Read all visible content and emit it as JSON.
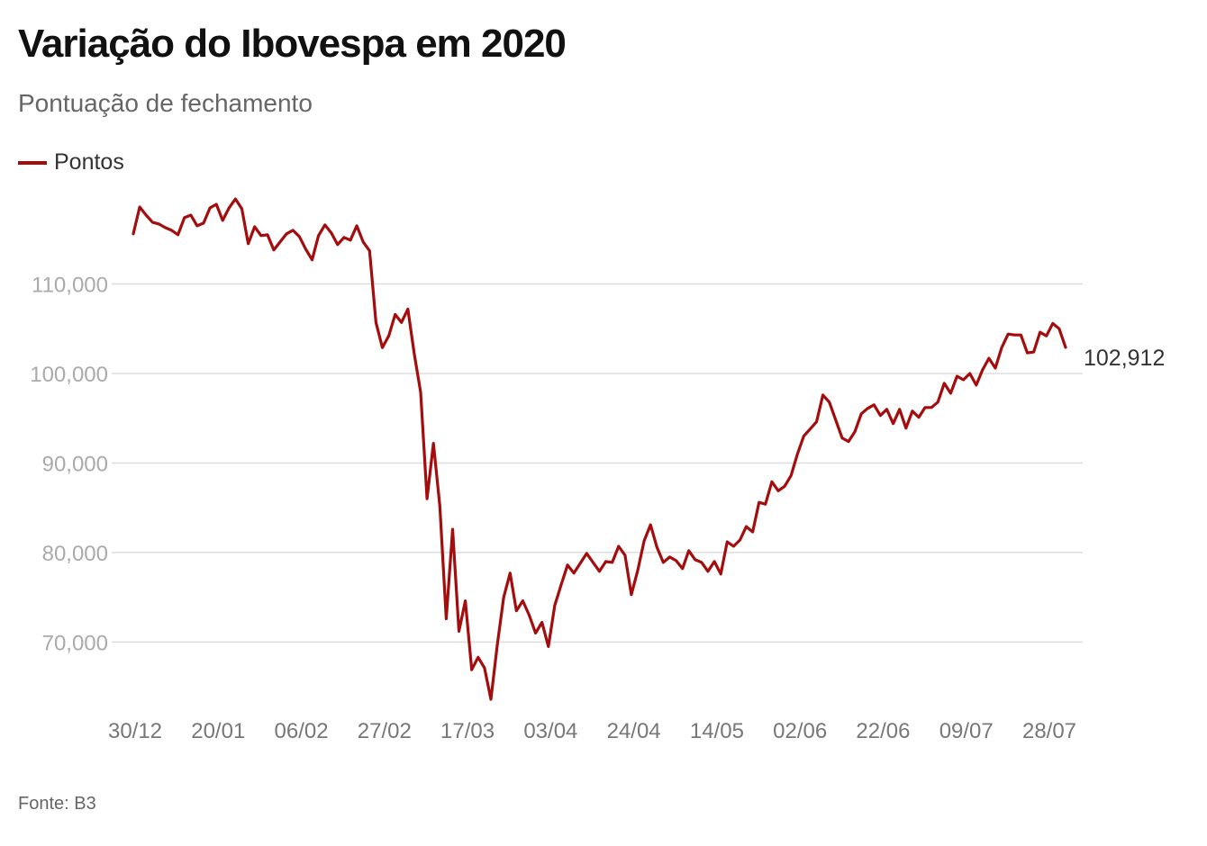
{
  "header": {
    "title": "Variação do Ibovespa em 2020",
    "subtitle": "Pontuação de fechamento"
  },
  "legend": {
    "label": "Pontos"
  },
  "footer": {
    "source": "Fonte: B3"
  },
  "colors": {
    "line": "#a30d0d",
    "grid": "#dddddd",
    "tick_y": "#aaaaaa",
    "tick_x": "#777777",
    "end_label": "#333333"
  },
  "chart_data": {
    "type": "line",
    "title": "Variação do Ibovespa em 2020",
    "subtitle": "Pontuação de fechamento",
    "xlabel": "",
    "ylabel": "",
    "ylim": [
      63000,
      118500
    ],
    "yticks": [
      70000,
      80000,
      90000,
      100000,
      110000
    ],
    "ytick_labels": [
      "70,000",
      "80,000",
      "90,000",
      "100,000",
      "110,000"
    ],
    "xticks": [
      "30/12",
      "20/01",
      "06/02",
      "27/02",
      "17/03",
      "03/04",
      "24/04",
      "14/05",
      "02/06",
      "22/06",
      "09/07",
      "28/07"
    ],
    "grid": true,
    "legend_position": "top-left",
    "end_label": "102,912",
    "series": [
      {
        "name": "Pontos",
        "values": [
          115600,
          118600,
          117700,
          116900,
          116700,
          116300,
          116000,
          115500,
          117400,
          117700,
          116500,
          116800,
          118500,
          118900,
          117100,
          118500,
          119500,
          118400,
          114500,
          116400,
          115400,
          115500,
          113800,
          114700,
          115600,
          116000,
          115300,
          113900,
          112700,
          115400,
          116600,
          115700,
          114400,
          115200,
          114900,
          116500,
          114700,
          113700,
          105700,
          102900,
          104200,
          106600,
          105700,
          107200,
          102200,
          97900,
          86000,
          92200,
          85200,
          72600,
          82600,
          71200,
          74600,
          66900,
          68300,
          67100,
          63600,
          69700,
          75000,
          77700,
          73500,
          74600,
          73000,
          71000,
          72200,
          69500,
          74100,
          76400,
          78600,
          77700,
          78800,
          79900,
          78900,
          77900,
          79000,
          78900,
          80700,
          79700,
          75300,
          78000,
          81300,
          83100,
          80600,
          78900,
          79500,
          79100,
          78200,
          80200,
          79200,
          78900,
          77900,
          79000,
          77600,
          81200,
          80700,
          81400,
          82900,
          82300,
          85600,
          85400,
          87900,
          86900,
          87400,
          88600,
          91000,
          93000,
          93800,
          94600,
          97600,
          96800,
          94800,
          92800,
          92400,
          93500,
          95500,
          96100,
          96500,
          95300,
          96000,
          94400,
          96000,
          93900,
          95800,
          95100,
          96200,
          96200,
          96800,
          98900,
          97800,
          99700,
          99300,
          100000,
          98700,
          100400,
          101700,
          100600,
          102900,
          104400,
          104300,
          104300,
          102300,
          102400,
          104600,
          104200,
          105600,
          105000,
          102912
        ]
      }
    ]
  }
}
